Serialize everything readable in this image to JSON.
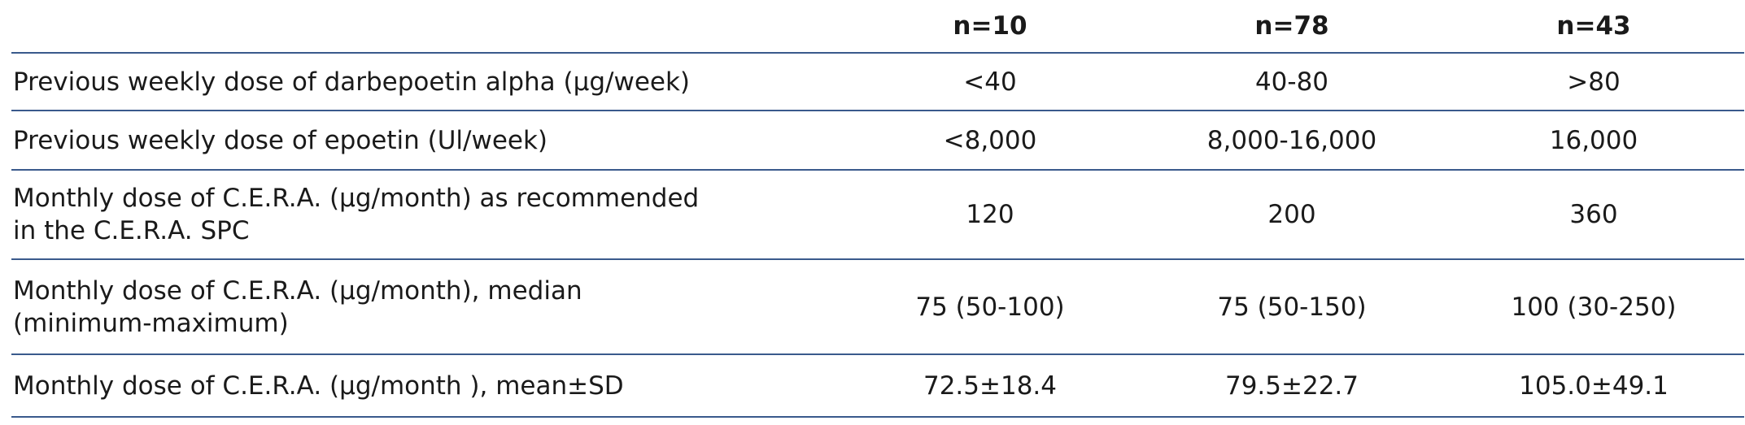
{
  "table": {
    "columns": [
      "n=10",
      "n=78",
      "n=43"
    ],
    "rows": [
      {
        "label": [
          "Previous weekly dose of darbepoetin alpha (µg/week)"
        ],
        "values": [
          "<40",
          "40-80",
          ">80"
        ]
      },
      {
        "label": [
          "Previous weekly dose of epoetin (Ul/week)"
        ],
        "values": [
          "<8,000",
          "8,000-16,000",
          "16,000"
        ]
      },
      {
        "label": [
          "Monthly dose of C.E.R.A. (µg/month) as recommended",
          "in the C.E.R.A. SPC"
        ],
        "values": [
          "120",
          "200",
          "360"
        ]
      },
      {
        "label": [
          "Monthly dose of C.E.R.A. (µg/month), median",
          "(minimum-maximum)"
        ],
        "values": [
          "75 (50-100)",
          "75 (50-150)",
          "100 (30-250)"
        ]
      },
      {
        "label": [
          "Monthly dose of C.E.R.A. (µg/month ), mean±SD"
        ],
        "values": [
          "72.5±18.4",
          "79.5±22.7",
          "105.0±49.1"
        ]
      }
    ]
  }
}
